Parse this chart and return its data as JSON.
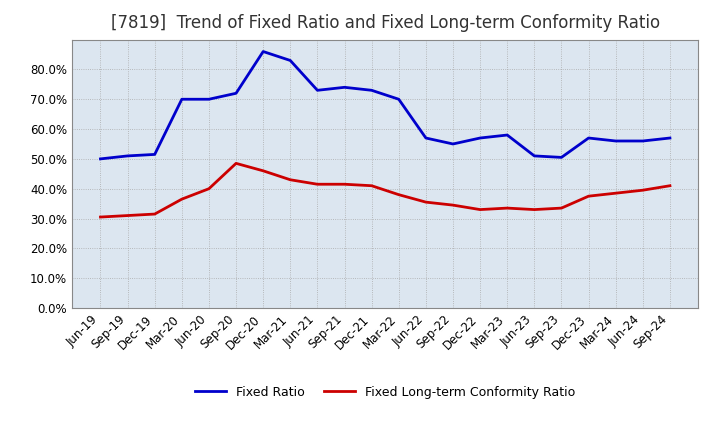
{
  "title": "[7819]  Trend of Fixed Ratio and Fixed Long-term Conformity Ratio",
  "x_labels": [
    "Jun-19",
    "Sep-19",
    "Dec-19",
    "Mar-20",
    "Jun-20",
    "Sep-20",
    "Dec-20",
    "Mar-21",
    "Jun-21",
    "Sep-21",
    "Dec-21",
    "Mar-22",
    "Jun-22",
    "Sep-22",
    "Dec-22",
    "Mar-23",
    "Jun-23",
    "Sep-23",
    "Dec-23",
    "Mar-24",
    "Jun-24",
    "Sep-24"
  ],
  "fixed_ratio": [
    50.0,
    51.0,
    51.5,
    70.0,
    70.0,
    72.0,
    86.0,
    83.0,
    73.0,
    74.0,
    73.0,
    70.0,
    57.0,
    55.0,
    57.0,
    58.0,
    51.0,
    50.5,
    57.0,
    56.0,
    56.0,
    57.0
  ],
  "fixed_lt_ratio": [
    30.5,
    31.0,
    31.5,
    36.5,
    40.0,
    48.5,
    46.0,
    43.0,
    41.5,
    41.5,
    41.0,
    38.0,
    35.5,
    34.5,
    33.0,
    33.5,
    33.0,
    33.5,
    37.5,
    38.5,
    39.5,
    41.0
  ],
  "fixed_ratio_color": "#0000cc",
  "fixed_lt_ratio_color": "#cc0000",
  "ylim": [
    0.0,
    90.0
  ],
  "yticks": [
    0.0,
    10.0,
    20.0,
    30.0,
    40.0,
    50.0,
    60.0,
    70.0,
    80.0
  ],
  "grid_color": "#aaaaaa",
  "plot_bg_color": "#dce6f0",
  "background_color": "#ffffff",
  "legend_fixed": "Fixed Ratio",
  "legend_lt": "Fixed Long-term Conformity Ratio",
  "title_fontsize": 12,
  "axis_fontsize": 8.5,
  "line_width": 2.0
}
